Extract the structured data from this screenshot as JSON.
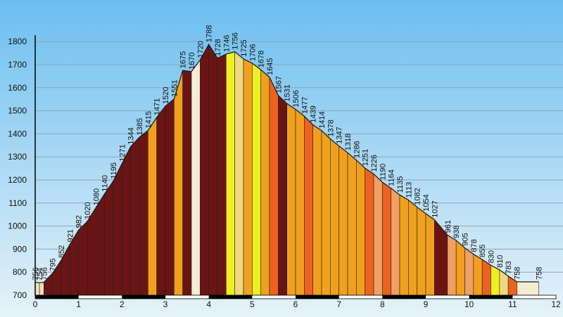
{
  "chart_data": {
    "type": "area",
    "title": "",
    "xlabel": "",
    "ylabel": "",
    "xlim": [
      0,
      12
    ],
    "ylim": [
      700,
      1850
    ],
    "yticks": [
      700,
      800,
      900,
      1000,
      1100,
      1200,
      1300,
      1400,
      1500,
      1600,
      1700,
      1800
    ],
    "xticks": [
      0,
      1,
      2,
      3,
      4,
      5,
      6,
      7,
      8,
      9,
      10,
      11,
      12
    ],
    "grid": true,
    "background_top": "#6cbef0",
    "background_bottom": "#e6f3f9",
    "points": [
      {
        "x": 0.0,
        "y": 756,
        "label": "756"
      },
      {
        "x": 0.1,
        "y": 754,
        "label": "754"
      },
      {
        "x": 0.2,
        "y": 756,
        "label": "756"
      },
      {
        "x": 0.4,
        "y": 795,
        "label": "795"
      },
      {
        "x": 0.6,
        "y": 852,
        "label": "852"
      },
      {
        "x": 0.8,
        "y": 921,
        "label": "921"
      },
      {
        "x": 1.0,
        "y": 982,
        "label": "982"
      },
      {
        "x": 1.2,
        "y": 1020,
        "label": "1020"
      },
      {
        "x": 1.4,
        "y": 1080,
        "label": "1080"
      },
      {
        "x": 1.6,
        "y": 1140,
        "label": "1140"
      },
      {
        "x": 1.8,
        "y": 1195,
        "label": "1195"
      },
      {
        "x": 2.0,
        "y": 1271,
        "label": "1271"
      },
      {
        "x": 2.2,
        "y": 1344,
        "label": "1344"
      },
      {
        "x": 2.4,
        "y": 1385,
        "label": "1385"
      },
      {
        "x": 2.6,
        "y": 1415,
        "label": "1415"
      },
      {
        "x": 2.8,
        "y": 1471,
        "label": "1471"
      },
      {
        "x": 3.0,
        "y": 1520,
        "label": "1520"
      },
      {
        "x": 3.2,
        "y": 1551,
        "label": "1551"
      },
      {
        "x": 3.4,
        "y": 1675,
        "label": "1675"
      },
      {
        "x": 3.6,
        "y": 1670,
        "label": "1670"
      },
      {
        "x": 3.8,
        "y": 1720,
        "label": "1720"
      },
      {
        "x": 4.0,
        "y": 1788,
        "label": "1788"
      },
      {
        "x": 4.2,
        "y": 1728,
        "label": "1728"
      },
      {
        "x": 4.4,
        "y": 1746,
        "label": "1746"
      },
      {
        "x": 4.6,
        "y": 1756,
        "label": "1756"
      },
      {
        "x": 4.8,
        "y": 1725,
        "label": "1725"
      },
      {
        "x": 5.0,
        "y": 1706,
        "label": "1706"
      },
      {
        "x": 5.2,
        "y": 1678,
        "label": "1678"
      },
      {
        "x": 5.4,
        "y": 1645,
        "label": "1645"
      },
      {
        "x": 5.6,
        "y": 1567,
        "label": "1567"
      },
      {
        "x": 5.8,
        "y": 1531,
        "label": "1531"
      },
      {
        "x": 6.0,
        "y": 1506,
        "label": "1506"
      },
      {
        "x": 6.2,
        "y": 1477,
        "label": "1477"
      },
      {
        "x": 6.4,
        "y": 1439,
        "label": "1439"
      },
      {
        "x": 6.6,
        "y": 1414,
        "label": "1414"
      },
      {
        "x": 6.8,
        "y": 1378,
        "label": "1378"
      },
      {
        "x": 7.0,
        "y": 1347,
        "label": "1347"
      },
      {
        "x": 7.2,
        "y": 1318,
        "label": "1318"
      },
      {
        "x": 7.4,
        "y": 1286,
        "label": "1286"
      },
      {
        "x": 7.6,
        "y": 1251,
        "label": "1251"
      },
      {
        "x": 7.8,
        "y": 1226,
        "label": "1226"
      },
      {
        "x": 8.0,
        "y": 1190,
        "label": "1190"
      },
      {
        "x": 8.2,
        "y": 1164,
        "label": "1164"
      },
      {
        "x": 8.4,
        "y": 1135,
        "label": "1135"
      },
      {
        "x": 8.6,
        "y": 1113,
        "label": "1113"
      },
      {
        "x": 8.8,
        "y": 1082,
        "label": "1082"
      },
      {
        "x": 9.0,
        "y": 1054,
        "label": "1054"
      },
      {
        "x": 9.2,
        "y": 1027,
        "label": "1027"
      },
      {
        "x": 9.5,
        "y": 961,
        "label": "961"
      },
      {
        "x": 9.7,
        "y": 938,
        "label": "938"
      },
      {
        "x": 9.9,
        "y": 905,
        "label": "905"
      },
      {
        "x": 10.1,
        "y": 878,
        "label": "878"
      },
      {
        "x": 10.3,
        "y": 855,
        "label": "855"
      },
      {
        "x": 10.5,
        "y": 830,
        "label": "830"
      },
      {
        "x": 10.7,
        "y": 810,
        "label": "810"
      },
      {
        "x": 10.9,
        "y": 783,
        "label": "783"
      },
      {
        "x": 11.1,
        "y": 758,
        "label": "758"
      },
      {
        "x": 11.6,
        "y": 758,
        "label": "758"
      }
    ],
    "segment_colors": [
      "#f2e1b8",
      "#f2e1b8",
      "#6b1414",
      "#6b1414",
      "#6b1414",
      "#6b1414",
      "#6b1414",
      "#6b1414",
      "#6b1414",
      "#6b1414",
      "#6b1414",
      "#6b1414",
      "#6b1414",
      "#6b1414",
      "#f0a01c",
      "#6b1414",
      "#6b1414",
      "#f0a01c",
      "#6b1414",
      "#f5ecd2",
      "#6b1414",
      "#6b1414",
      "#6b1414",
      "#eef020",
      "#f0d880",
      "#f0a01c",
      "#eef020",
      "#f0a01c",
      "#ee6220",
      "#6b1414",
      "#f0a01c",
      "#f0a01c",
      "#ee6220",
      "#f0a01c",
      "#f0a01c",
      "#f0a01c",
      "#f0a01c",
      "#f0a01c",
      "#f0a01c",
      "#ee6220",
      "#f0a060",
      "#ee6220",
      "#f0a060",
      "#f0a01c",
      "#f0a01c",
      "#f0a01c",
      "#f0a01c",
      "#6b1414",
      "#f0a060",
      "#f0a01c",
      "#f0a060",
      "#f0a01c",
      "#ee6220",
      "#eef020",
      "#f0d880",
      "#ee6220",
      "#f5ecd2"
    ],
    "outline_color": "#1a1a1a"
  }
}
